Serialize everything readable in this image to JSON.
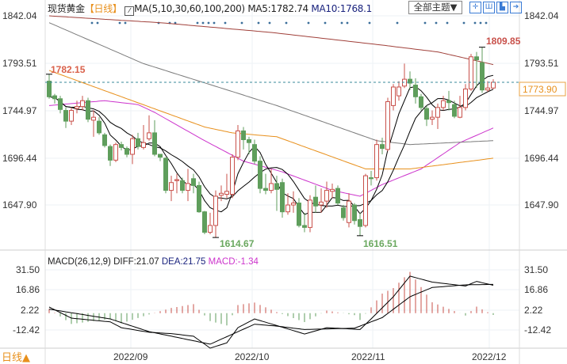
{
  "header": {
    "symbol": "现货黄金",
    "period": "【日线】",
    "ma_label": "MA(5,10,30,60,100,200)",
    "ma5": "MA5:1782.74",
    "ma10": "MA10:1768.1",
    "theme_button": "全部主题▼",
    "tool_icons": [
      "crosshair-icon",
      "zoom-in-icon",
      "zoom-out-icon",
      "exit-icon"
    ]
  },
  "price_axis": [
    "1842.04",
    "1793.51",
    "1744.97",
    "1696.44",
    "1647.90"
  ],
  "current_price": "1773.90",
  "annotations": {
    "start_high": "1782.15",
    "low1": "1614.67",
    "low2": "1616.51",
    "high": "1809.85"
  },
  "macd": {
    "label": "MACD(26,12,9)",
    "diff": "DIFF:21.07",
    "dea": "DEA:21.75",
    "macd": "MACD:-1.34",
    "axis": [
      "31.50",
      "16.86",
      "2.22",
      "-12.42"
    ]
  },
  "x_axis": [
    "2022/09",
    "2022/10",
    "2022/11",
    "2022/12"
  ],
  "period_switch": "日线▲",
  "colors": {
    "up": "#c8504a",
    "down": "#5f9e5c",
    "ma5": "#000000",
    "ma10": "#000000",
    "ma30": "#cc33cc",
    "ma60": "#e8901c",
    "ma100": "#7a7a7a",
    "ma200": "#a0403a",
    "last": "#3a8a9a",
    "dea_text": "#1a237e",
    "macd_text": "#cc33cc"
  },
  "chart_data": {
    "type": "candlestick",
    "ohlc": [
      [
        1775,
        1782.15,
        1757,
        1759
      ],
      [
        1760,
        1762,
        1752,
        1757
      ],
      [
        1757,
        1760,
        1742,
        1746
      ],
      [
        1745,
        1748,
        1727,
        1734
      ],
      [
        1734,
        1748,
        1730,
        1745
      ],
      [
        1747,
        1755,
        1742,
        1749
      ],
      [
        1749,
        1760,
        1745,
        1755
      ],
      [
        1755,
        1758,
        1733,
        1736
      ],
      [
        1735,
        1745,
        1718,
        1738
      ],
      [
        1734,
        1738,
        1720,
        1722
      ],
      [
        1720,
        1722,
        1707,
        1709
      ],
      [
        1708,
        1710,
        1688,
        1694
      ],
      [
        1694,
        1712,
        1692,
        1710
      ],
      [
        1710,
        1713,
        1704,
        1707
      ],
      [
        1706,
        1708,
        1697,
        1700
      ],
      [
        1700,
        1720,
        1690,
        1716
      ],
      [
        1716,
        1722,
        1705,
        1708
      ],
      [
        1707,
        1730,
        1705,
        1712
      ],
      [
        1716,
        1740,
        1714,
        1722
      ],
      [
        1722,
        1735,
        1698,
        1700
      ],
      [
        1700,
        1700,
        1693,
        1697
      ],
      [
        1696,
        1697,
        1660,
        1663
      ],
      [
        1663,
        1678,
        1652,
        1671
      ],
      [
        1673,
        1680,
        1660,
        1674
      ],
      [
        1673,
        1676,
        1660,
        1663
      ],
      [
        1663,
        1685,
        1652,
        1670
      ],
      [
        1675,
        1680,
        1660,
        1668
      ],
      [
        1668,
        1672,
        1640,
        1641
      ],
      [
        1641,
        1642,
        1618,
        1620
      ],
      [
        1620,
        1640,
        1618,
        1627
      ],
      [
        1627,
        1663,
        1614.67,
        1657
      ],
      [
        1658,
        1668,
        1652,
        1660
      ],
      [
        1659,
        1680,
        1655,
        1662
      ],
      [
        1659,
        1700,
        1655,
        1697
      ],
      [
        1697,
        1730,
        1694,
        1724
      ],
      [
        1724,
        1728,
        1705,
        1715
      ],
      [
        1715,
        1718,
        1700,
        1712
      ],
      [
        1710,
        1715,
        1690,
        1693
      ],
      [
        1693,
        1698,
        1660,
        1665
      ],
      [
        1665,
        1680,
        1659,
        1663
      ],
      [
        1663,
        1685,
        1660,
        1670
      ],
      [
        1670,
        1678,
        1642,
        1664
      ],
      [
        1671,
        1675,
        1635,
        1641
      ],
      [
        1641,
        1660,
        1638,
        1648
      ],
      [
        1648,
        1662,
        1640,
        1650
      ],
      [
        1650,
        1655,
        1625,
        1627
      ],
      [
        1627,
        1640,
        1620,
        1625
      ],
      [
        1625,
        1658,
        1620,
        1653
      ],
      [
        1656,
        1668,
        1640,
        1647
      ],
      [
        1648,
        1665,
        1640,
        1651
      ],
      [
        1652,
        1672,
        1645,
        1663
      ],
      [
        1662,
        1670,
        1655,
        1664
      ],
      [
        1665,
        1668,
        1648,
        1650
      ],
      [
        1645,
        1648,
        1632,
        1635
      ],
      [
        1630,
        1660,
        1625,
        1652
      ],
      [
        1648,
        1650,
        1628,
        1632
      ],
      [
        1633,
        1640,
        1616.51,
        1626
      ],
      [
        1627,
        1680,
        1625,
        1678
      ],
      [
        1676,
        1683,
        1668,
        1675
      ],
      [
        1676,
        1715,
        1673,
        1710
      ],
      [
        1710,
        1717,
        1700,
        1706
      ],
      [
        1705,
        1758,
        1703,
        1754
      ],
      [
        1750,
        1772,
        1745,
        1769
      ],
      [
        1760,
        1775,
        1755,
        1769
      ],
      [
        1770,
        1793,
        1768,
        1777
      ],
      [
        1777,
        1785,
        1766,
        1773
      ],
      [
        1771,
        1778,
        1752,
        1759
      ],
      [
        1759,
        1762,
        1745,
        1748
      ],
      [
        1747,
        1750,
        1729,
        1736
      ],
      [
        1736,
        1745,
        1730,
        1738
      ],
      [
        1738,
        1752,
        1726,
        1748
      ],
      [
        1748,
        1760,
        1745,
        1755
      ],
      [
        1755,
        1765,
        1745,
        1753
      ],
      [
        1751,
        1755,
        1737,
        1739
      ],
      [
        1738,
        1760,
        1737,
        1748
      ],
      [
        1748,
        1772,
        1745,
        1767
      ],
      [
        1767,
        1803,
        1765,
        1800
      ],
      [
        1800,
        1805,
        1768,
        1797
      ],
      [
        1794,
        1809.85,
        1763,
        1766
      ],
      [
        1766,
        1775,
        1764,
        1768
      ],
      [
        1768,
        1777,
        1767,
        1773.9
      ]
    ],
    "ohlc_order": [
      "open",
      "high",
      "low",
      "close"
    ],
    "ma_lines": {
      "MA30": [
        [
          0,
          1750
        ],
        [
          10,
          1755
        ],
        [
          16,
          1751
        ],
        [
          19,
          1743
        ],
        [
          28,
          1714
        ],
        [
          35,
          1693
        ],
        [
          42,
          1682
        ],
        [
          51,
          1663
        ],
        [
          56,
          1657
        ],
        [
          60,
          1669
        ],
        [
          67,
          1685
        ],
        [
          74,
          1712
        ],
        [
          80,
          1727
        ]
      ],
      "MA60": [
        [
          0,
          1786
        ],
        [
          28,
          1728
        ],
        [
          33,
          1722
        ],
        [
          41,
          1718
        ],
        [
          57,
          1685
        ],
        [
          65,
          1685
        ],
        [
          80,
          1696
        ]
      ],
      "MA100": [
        [
          0,
          1835
        ],
        [
          17,
          1793
        ],
        [
          41,
          1750
        ],
        [
          59,
          1714
        ],
        [
          65,
          1710
        ],
        [
          80,
          1714
        ]
      ],
      "MA200": [
        [
          0,
          1842
        ],
        [
          20,
          1835
        ],
        [
          40,
          1825
        ],
        [
          60,
          1812
        ],
        [
          70,
          1805
        ],
        [
          80,
          1792
        ]
      ]
    },
    "diff": [
      [
        0,
        4.6
      ],
      [
        4,
        -3.8
      ],
      [
        11,
        -6.6
      ],
      [
        13,
        -11
      ],
      [
        18,
        -14.5
      ],
      [
        22,
        -15.5
      ],
      [
        26,
        -17.5
      ],
      [
        29,
        -26.5
      ],
      [
        32,
        -22.5
      ],
      [
        34,
        -11
      ],
      [
        37,
        -4.4
      ],
      [
        41,
        -9.4
      ],
      [
        46,
        -15.8
      ],
      [
        50,
        -11
      ],
      [
        56,
        -12.4
      ],
      [
        58,
        -4.4
      ],
      [
        62,
        12.4
      ],
      [
        65,
        28
      ],
      [
        69,
        23.5
      ],
      [
        75,
        20.5
      ],
      [
        77,
        24
      ],
      [
        80,
        21.07
      ]
    ],
    "dea": [
      [
        0,
        3
      ],
      [
        11,
        -4.4
      ],
      [
        18,
        -14
      ],
      [
        29,
        -23.5
      ],
      [
        37,
        -8.4
      ],
      [
        41,
        -9.8
      ],
      [
        46,
        -12.4
      ],
      [
        55,
        -11.4
      ],
      [
        60,
        -3.4
      ],
      [
        65,
        12.4
      ],
      [
        69,
        19.4
      ],
      [
        75,
        21.4
      ],
      [
        80,
        21.75
      ]
    ],
    "ylim": [
      1614,
      1842.04
    ],
    "macd_ylim": [
      -27,
      32
    ]
  }
}
